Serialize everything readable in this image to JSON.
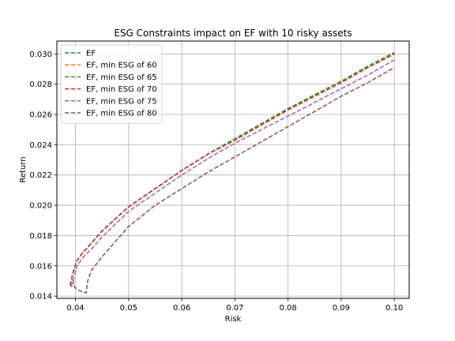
{
  "chart_data": {
    "type": "line",
    "title": "ESG Constraints impact on EF with 10 risky assets",
    "xlabel": "Risk",
    "ylabel": "Return",
    "xlim": [
      0.0365,
      0.1028
    ],
    "ylim": [
      0.01385,
      0.03085
    ],
    "xticks": [
      0.04,
      0.05,
      0.06,
      0.07,
      0.08,
      0.09,
      0.1
    ],
    "xtick_labels": [
      "0.04",
      "0.05",
      "0.06",
      "0.07",
      "0.08",
      "0.09",
      "0.10"
    ],
    "yticks": [
      0.014,
      0.016,
      0.018,
      0.02,
      0.022,
      0.024,
      0.026,
      0.028,
      0.03
    ],
    "ytick_labels": [
      "0.014",
      "0.016",
      "0.018",
      "0.020",
      "0.022",
      "0.024",
      "0.026",
      "0.028",
      "0.030"
    ],
    "grid": true,
    "legend_position": "upper-left",
    "line_style": "dashed",
    "series": [
      {
        "name": "EF",
        "color": "#1f77b4",
        "points": [
          [
            0.039,
            0.0147
          ],
          [
            0.0395,
            0.0155
          ],
          [
            0.0402,
            0.0163
          ],
          [
            0.0412,
            0.0168
          ],
          [
            0.0425,
            0.0173
          ],
          [
            0.045,
            0.0183
          ],
          [
            0.05,
            0.0199
          ],
          [
            0.055,
            0.0211
          ],
          [
            0.06,
            0.0223
          ],
          [
            0.065,
            0.0234
          ],
          [
            0.07,
            0.0244
          ],
          [
            0.075,
            0.0254
          ],
          [
            0.08,
            0.0263
          ],
          [
            0.085,
            0.0273
          ],
          [
            0.09,
            0.0282
          ],
          [
            0.095,
            0.0291
          ],
          [
            0.1,
            0.03
          ]
        ]
      },
      {
        "name": "EF, min ESG of 60",
        "color": "#ff7f0e",
        "points": [
          [
            0.039,
            0.0147
          ],
          [
            0.0395,
            0.0155
          ],
          [
            0.0402,
            0.0163
          ],
          [
            0.0412,
            0.0168
          ],
          [
            0.0425,
            0.0173
          ],
          [
            0.045,
            0.0183
          ],
          [
            0.05,
            0.0199
          ],
          [
            0.055,
            0.0211
          ],
          [
            0.06,
            0.0223
          ],
          [
            0.065,
            0.0234
          ],
          [
            0.07,
            0.0244
          ],
          [
            0.075,
            0.0254
          ],
          [
            0.08,
            0.0263
          ],
          [
            0.085,
            0.0273
          ],
          [
            0.09,
            0.0282
          ],
          [
            0.095,
            0.0291
          ],
          [
            0.1,
            0.03
          ]
        ]
      },
      {
        "name": "EF, min ESG of 65",
        "color": "#2ca02c",
        "points": [
          [
            0.039,
            0.0147
          ],
          [
            0.0395,
            0.0155
          ],
          [
            0.0402,
            0.0163
          ],
          [
            0.0412,
            0.0168
          ],
          [
            0.0425,
            0.0173
          ],
          [
            0.045,
            0.0183
          ],
          [
            0.05,
            0.0199
          ],
          [
            0.055,
            0.0211
          ],
          [
            0.06,
            0.0223
          ],
          [
            0.065,
            0.0234
          ],
          [
            0.07,
            0.0244
          ],
          [
            0.075,
            0.0254
          ],
          [
            0.08,
            0.0264
          ],
          [
            0.085,
            0.0273
          ],
          [
            0.09,
            0.0282
          ],
          [
            0.095,
            0.0292
          ],
          [
            0.1,
            0.0301
          ]
        ]
      },
      {
        "name": "EF, min ESG of 70",
        "color": "#d62728",
        "points": [
          [
            0.039,
            0.0147
          ],
          [
            0.0395,
            0.0155
          ],
          [
            0.0402,
            0.0163
          ],
          [
            0.0412,
            0.0168
          ],
          [
            0.0425,
            0.0173
          ],
          [
            0.045,
            0.0183
          ],
          [
            0.05,
            0.0199
          ],
          [
            0.055,
            0.0211
          ],
          [
            0.06,
            0.0223
          ],
          [
            0.065,
            0.0234
          ],
          [
            0.07,
            0.0243
          ],
          [
            0.075,
            0.0253
          ],
          [
            0.08,
            0.0263
          ],
          [
            0.085,
            0.0272
          ],
          [
            0.09,
            0.0281
          ],
          [
            0.095,
            0.0291
          ],
          [
            0.1,
            0.03
          ]
        ]
      },
      {
        "name": "EF, min ESG of 75",
        "color": "#9467bd",
        "points": [
          [
            0.0392,
            0.0146
          ],
          [
            0.0397,
            0.0152
          ],
          [
            0.0403,
            0.016
          ],
          [
            0.0415,
            0.0166
          ],
          [
            0.043,
            0.0171
          ],
          [
            0.045,
            0.0179
          ],
          [
            0.05,
            0.0196
          ],
          [
            0.055,
            0.0208
          ],
          [
            0.06,
            0.022
          ],
          [
            0.065,
            0.0231
          ],
          [
            0.07,
            0.0241
          ],
          [
            0.075,
            0.025
          ],
          [
            0.08,
            0.0259
          ],
          [
            0.084,
            0.0266
          ],
          [
            0.085,
            0.0268
          ],
          [
            0.09,
            0.0277
          ],
          [
            0.095,
            0.0286
          ],
          [
            0.1,
            0.0296
          ]
        ]
      },
      {
        "name": "EF, min ESG of 80",
        "color": "#8c564b",
        "points": [
          [
            0.0395,
            0.0151
          ],
          [
            0.0398,
            0.0146
          ],
          [
            0.0405,
            0.0144
          ],
          [
            0.042,
            0.0142
          ],
          [
            0.0423,
            0.015
          ],
          [
            0.043,
            0.0157
          ],
          [
            0.045,
            0.0166
          ],
          [
            0.05,
            0.0186
          ],
          [
            0.055,
            0.02
          ],
          [
            0.06,
            0.0211
          ],
          [
            0.065,
            0.0222
          ],
          [
            0.067,
            0.0226
          ],
          [
            0.07,
            0.0232
          ],
          [
            0.075,
            0.0242
          ],
          [
            0.08,
            0.0252
          ],
          [
            0.085,
            0.0262
          ],
          [
            0.09,
            0.0272
          ],
          [
            0.095,
            0.0281
          ],
          [
            0.1,
            0.0291
          ]
        ]
      }
    ]
  }
}
